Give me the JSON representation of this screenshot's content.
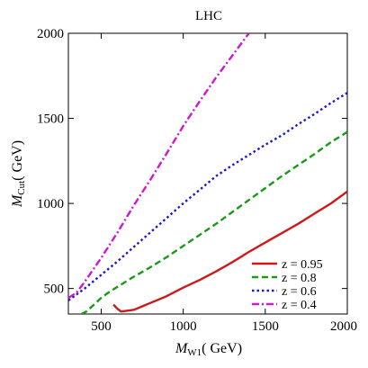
{
  "chart_data": {
    "type": "line",
    "title": "LHC",
    "xlabel": {
      "main": "M",
      "sub": "W1",
      "unit": "( GeV)"
    },
    "ylabel": {
      "main": "M",
      "sub": "Cut",
      "unit": "( GeV)"
    },
    "xlim": [
      300,
      2000
    ],
    "ylim": [
      350,
      2000
    ],
    "xticks": [
      500,
      1000,
      1500,
      2000
    ],
    "yticks": [
      500,
      1000,
      1500,
      2000
    ],
    "legend_position": "bottom-right",
    "series": [
      {
        "name": "z = 0.95",
        "color": "#cc1a1a",
        "dash": "solid",
        "x": [
          575,
          600,
          620,
          650,
          700,
          750,
          800,
          900,
          1000,
          1100,
          1200,
          1300,
          1400,
          1500,
          1600,
          1700,
          1800,
          1900,
          2000
        ],
        "y": [
          405,
          380,
          365,
          368,
          375,
          395,
          415,
          455,
          505,
          550,
          600,
          655,
          715,
          770,
          825,
          880,
          940,
          1000,
          1070
        ]
      },
      {
        "name": "z = 0.8",
        "color": "#1a9a1a",
        "dash": "dashed",
        "x": [
          380,
          410,
          450,
          500,
          550,
          600,
          700,
          800,
          900,
          1000,
          1100,
          1200,
          1300,
          1400,
          1500,
          1600,
          1700,
          1800,
          1900,
          2000
        ],
        "y": [
          350,
          365,
          400,
          445,
          480,
          510,
          570,
          625,
          685,
          750,
          815,
          880,
          950,
          1020,
          1090,
          1160,
          1225,
          1290,
          1360,
          1420
        ]
      },
      {
        "name": "z = 0.6",
        "color": "#1a1acc",
        "dash": "dotted",
        "x": [
          300,
          350,
          400,
          500,
          600,
          700,
          800,
          900,
          1000,
          1100,
          1200,
          1300,
          1400,
          1500,
          1600,
          1700,
          1800,
          1900,
          2000
        ],
        "y": [
          430,
          465,
          500,
          580,
          660,
          745,
          830,
          915,
          1000,
          1080,
          1160,
          1225,
          1285,
          1345,
          1400,
          1465,
          1525,
          1590,
          1650
        ]
      },
      {
        "name": "z = 0.4",
        "color": "#cc1acc",
        "dash": "dashdot",
        "x": [
          300,
          350,
          400,
          500,
          600,
          700,
          800,
          900,
          1000,
          1100,
          1200,
          1300,
          1400
        ],
        "y": [
          445,
          475,
          540,
          680,
          830,
          990,
          1140,
          1295,
          1455,
          1600,
          1740,
          1870,
          2000
        ]
      }
    ]
  }
}
